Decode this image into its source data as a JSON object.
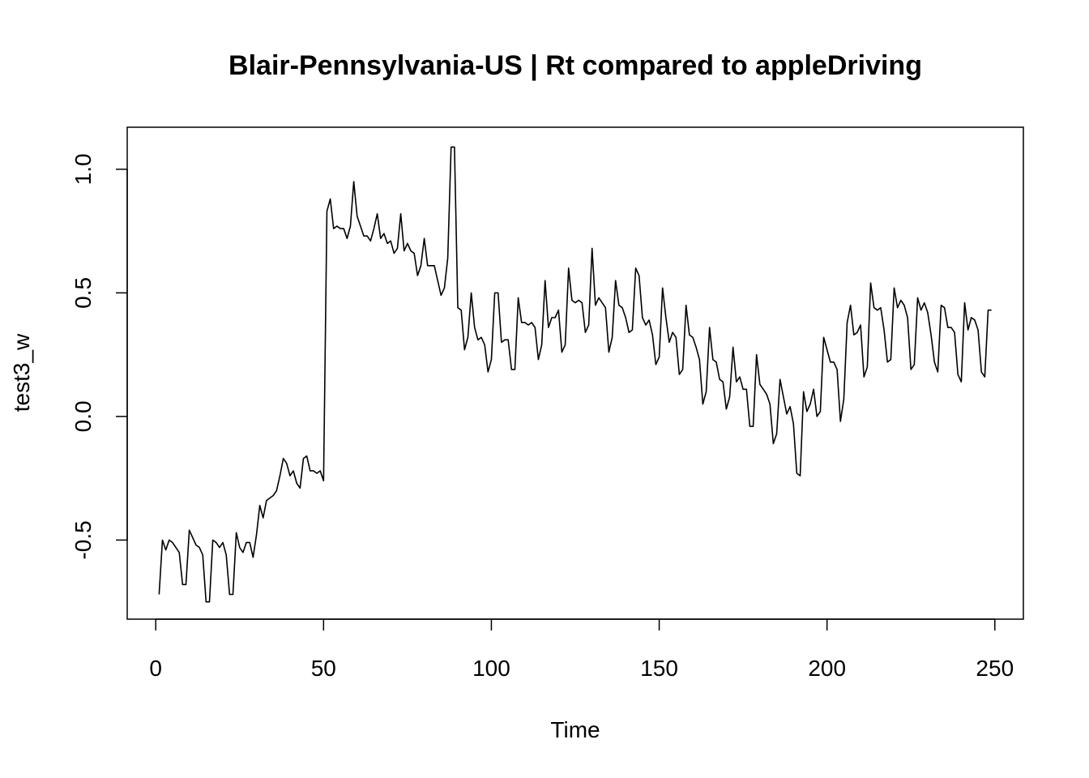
{
  "chart_data": {
    "type": "line",
    "title": "Blair-Pennsylvania-US | Rt compared to appleDriving",
    "xlabel": "Time",
    "ylabel": "test3_w",
    "xlim": [
      -8.5,
      258.5
    ],
    "ylim": [
      -0.82,
      1.17
    ],
    "xticks": [
      0,
      50,
      100,
      150,
      200,
      250
    ],
    "xtick_labels": [
      "0",
      "50",
      "100",
      "150",
      "200",
      "250"
    ],
    "yticks": [
      -0.5,
      0.0,
      0.5,
      1.0
    ],
    "ytick_labels": [
      "-0.5",
      "0.0",
      "0.5",
      "1.0"
    ],
    "grid": false,
    "legend": "none",
    "line_color": "#000000",
    "x_start": 1,
    "values": [
      -0.72,
      -0.5,
      -0.54,
      -0.5,
      -0.51,
      -0.53,
      -0.55,
      -0.68,
      -0.68,
      -0.46,
      -0.49,
      -0.52,
      -0.53,
      -0.56,
      -0.75,
      -0.75,
      -0.5,
      -0.51,
      -0.53,
      -0.51,
      -0.56,
      -0.72,
      -0.72,
      -0.47,
      -0.53,
      -0.55,
      -0.51,
      -0.51,
      -0.57,
      -0.48,
      -0.36,
      -0.41,
      -0.34,
      -0.33,
      -0.32,
      -0.3,
      -0.24,
      -0.17,
      -0.19,
      -0.24,
      -0.22,
      -0.27,
      -0.29,
      -0.17,
      -0.16,
      -0.22,
      -0.22,
      -0.23,
      -0.22,
      -0.26,
      0.83,
      0.88,
      0.76,
      0.77,
      0.76,
      0.76,
      0.72,
      0.77,
      0.95,
      0.81,
      0.77,
      0.73,
      0.73,
      0.71,
      0.76,
      0.82,
      0.72,
      0.74,
      0.7,
      0.71,
      0.66,
      0.68,
      0.82,
      0.67,
      0.7,
      0.67,
      0.66,
      0.57,
      0.61,
      0.72,
      0.61,
      0.61,
      0.61,
      0.55,
      0.49,
      0.52,
      0.64,
      1.09,
      1.09,
      0.44,
      0.43,
      0.27,
      0.32,
      0.5,
      0.36,
      0.31,
      0.32,
      0.29,
      0.18,
      0.23,
      0.5,
      0.5,
      0.3,
      0.31,
      0.31,
      0.19,
      0.19,
      0.48,
      0.38,
      0.38,
      0.37,
      0.38,
      0.36,
      0.23,
      0.29,
      0.55,
      0.36,
      0.4,
      0.4,
      0.43,
      0.26,
      0.29,
      0.6,
      0.47,
      0.46,
      0.47,
      0.46,
      0.34,
      0.37,
      0.68,
      0.45,
      0.48,
      0.46,
      0.44,
      0.26,
      0.32,
      0.55,
      0.45,
      0.44,
      0.4,
      0.34,
      0.35,
      0.6,
      0.57,
      0.4,
      0.37,
      0.39,
      0.33,
      0.21,
      0.24,
      0.52,
      0.4,
      0.3,
      0.34,
      0.32,
      0.17,
      0.19,
      0.45,
      0.33,
      0.32,
      0.28,
      0.23,
      0.05,
      0.1,
      0.36,
      0.23,
      0.22,
      0.15,
      0.14,
      0.03,
      0.08,
      0.28,
      0.14,
      0.16,
      0.11,
      0.11,
      -0.04,
      -0.04,
      0.25,
      0.13,
      0.11,
      0.09,
      0.05,
      -0.11,
      -0.07,
      0.15,
      0.08,
      0.01,
      0.04,
      -0.03,
      -0.23,
      -0.24,
      0.1,
      0.02,
      0.05,
      0.11,
      0.0,
      0.02,
      0.32,
      0.27,
      0.22,
      0.22,
      0.19,
      -0.02,
      0.07,
      0.38,
      0.45,
      0.33,
      0.34,
      0.37,
      0.16,
      0.2,
      0.54,
      0.44,
      0.43,
      0.44,
      0.35,
      0.22,
      0.23,
      0.52,
      0.44,
      0.47,
      0.45,
      0.4,
      0.19,
      0.21,
      0.48,
      0.43,
      0.46,
      0.42,
      0.33,
      0.22,
      0.18,
      0.45,
      0.44,
      0.36,
      0.36,
      0.34,
      0.17,
      0.14,
      0.46,
      0.35,
      0.4,
      0.39,
      0.35,
      0.18,
      0.16,
      0.43,
      0.43
    ]
  }
}
